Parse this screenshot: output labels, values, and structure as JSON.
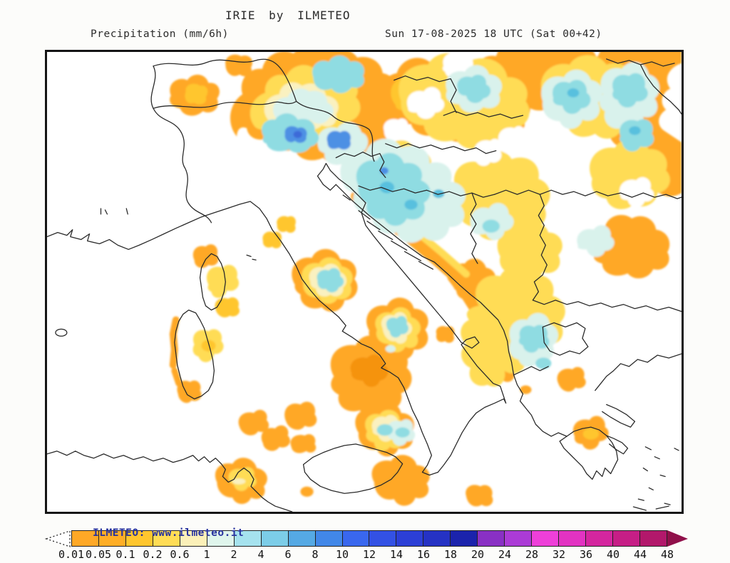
{
  "header": {
    "title": "IRIE by ILMETEO",
    "left_subtitle": "Precipitation (mm/6h)",
    "right_subtitle": "Sun 17-08-2025 18 UTC (Sat 00+42)"
  },
  "map": {
    "watermark": "ILMETEO: www.ilmeteo.it"
  },
  "legend": {
    "labels": [
      "0.01",
      "0.05",
      "0.1",
      "0.2",
      "0.6",
      "1",
      "2",
      "4",
      "6",
      "8",
      "10",
      "12",
      "14",
      "16",
      "18",
      "20",
      "24",
      "28",
      "32",
      "36",
      "40",
      "44",
      "48"
    ],
    "colors": [
      "#FFA826",
      "#FFAE26",
      "#FFC62E",
      "#FFDC55",
      "#FBF0B8",
      "#DFF5EC",
      "#A5E2EE",
      "#7CCDE8",
      "#55A9E4",
      "#4187E8",
      "#3967EE",
      "#3351E4",
      "#2C3FD6",
      "#2532C4",
      "#1B23AC",
      "#8930C4",
      "#AB3BD6",
      "#EE3FD9",
      "#E233C2",
      "#D4269F",
      "#C61E86",
      "#B2186B"
    ],
    "right_arrow_color": "#90104A"
  },
  "palette": {
    "orange": "#FFA826",
    "orange_deep": "#F5930E",
    "gold": "#FFC62E",
    "yellow": "#FFDC55",
    "cream": "#FAF1C0",
    "pale_cyan": "#D9F2EC",
    "cyan": "#8FDCE2",
    "teal": "#58C0DE",
    "blue": "#4E90E4",
    "deep_blue": "#3E6AD8",
    "coastline": "#2A2A2A",
    "frame": "#151515",
    "watermark_color": "#27329E"
  }
}
